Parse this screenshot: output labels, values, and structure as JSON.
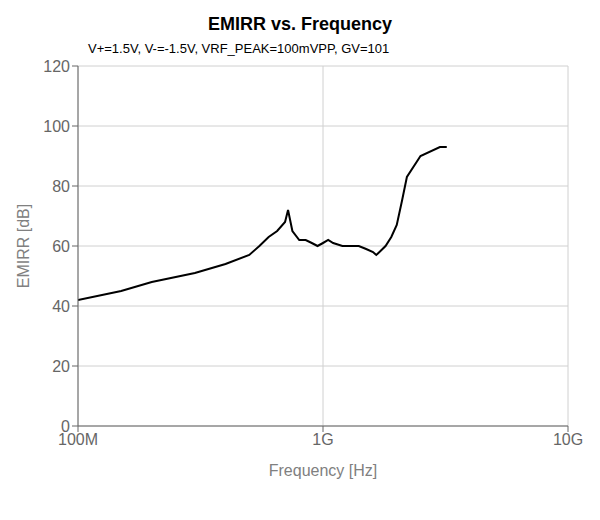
{
  "chart_data": {
    "type": "line",
    "title": "EMIRR vs. Frequency",
    "subtitle": "V+=1.5V, V-=-1.5V, VRF_PEAK=100mVPP, GV=101",
    "x_label": "Frequency [Hz]",
    "y_label": "EMIRR [dB]",
    "x": [
      100000000,
      150000000,
      200000000,
      300000000,
      400000000,
      500000000,
      550000000,
      600000000,
      650000000,
      700000000,
      720000000,
      750000000,
      800000000,
      850000000,
      900000000,
      950000000,
      1000000000,
      1050000000,
      1100000000,
      1200000000,
      1300000000,
      1400000000,
      1500000000,
      1600000000,
      1650000000,
      1700000000,
      1800000000,
      1900000000,
      2000000000,
      2100000000,
      2200000000,
      2500000000,
      3000000000,
      3200000000
    ],
    "values": [
      42,
      45,
      48,
      51,
      54,
      57,
      60,
      63,
      65,
      68,
      72,
      65,
      62,
      62,
      61,
      60,
      61,
      62,
      61,
      60,
      60,
      60,
      59,
      58,
      57,
      58,
      60,
      63,
      67,
      75,
      83,
      90,
      93,
      93
    ],
    "color": "#000000",
    "log": "x",
    "xlim": [
      100000000,
      10000000000
    ],
    "xticks": [
      {
        "value": 100000000,
        "label": "100M"
      },
      {
        "value": 1000000000,
        "label": "1G"
      },
      {
        "value": 10000000000,
        "label": "10G"
      }
    ],
    "ylim": [
      0,
      120
    ],
    "yticks": [
      0,
      20,
      40,
      60,
      80,
      100,
      120
    ],
    "grid": true
  }
}
